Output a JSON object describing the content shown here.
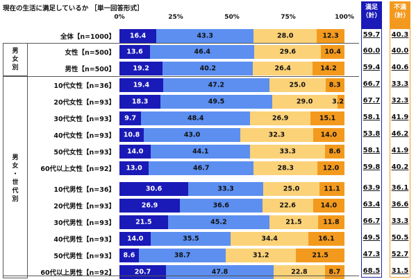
{
  "title": "現在の生活に満足しているか ［単一回答形式］",
  "ticks": [
    "0%",
    "25%",
    "50%",
    "75%",
    "100%"
  ],
  "headers": {
    "manzoku": [
      "満足",
      "（計）"
    ],
    "fuman": [
      "不満",
      "（計）"
    ]
  },
  "groups": {
    "gender": [
      "男",
      "女",
      "別"
    ],
    "gender_age": [
      "男",
      "女",
      "・",
      "世",
      "代",
      "別"
    ]
  },
  "colors": {
    "s1": "#1a1ab8",
    "s2": "#5c8ff0",
    "s3": "#fcd278",
    "s4": "#f39a1e"
  },
  "chart_data": {
    "type": "bar",
    "orientation": "horizontal-stacked-100",
    "title": "現在の生活に満足しているか ［単一回答形式］",
    "xlim": [
      0,
      100
    ],
    "categories": [
      "全体【n=1000】",
      "女性【n=500】",
      "男性【n=500】",
      "10代女性【n=36】",
      "20代女性【n=93】",
      "30代女性【n=93】",
      "40代女性【n=93】",
      "50代女性【n=93】",
      "60代以上女性【n=92】",
      "10代男性【n=36】",
      "20代男性【n=93】",
      "30代男性【n=93】",
      "40代男性【n=93】",
      "50代男性【n=93】",
      "60代以上男性【n=92】"
    ],
    "series": [
      {
        "values": [
          16.4,
          13.6,
          19.2,
          19.4,
          18.3,
          9.7,
          10.8,
          14.0,
          13.0,
          30.6,
          26.9,
          21.5,
          14.0,
          8.6,
          20.7
        ]
      },
      {
        "values": [
          43.3,
          46.4,
          40.2,
          47.2,
          49.5,
          48.4,
          43.0,
          44.1,
          46.7,
          33.3,
          36.6,
          45.2,
          35.5,
          38.7,
          47.8
        ]
      },
      {
        "values": [
          28.0,
          29.6,
          26.4,
          25.0,
          29.0,
          26.9,
          32.3,
          33.3,
          28.3,
          25.0,
          22.6,
          21.5,
          34.4,
          31.2,
          22.8
        ]
      },
      {
        "values": [
          12.3,
          10.4,
          14.2,
          8.3,
          3.2,
          15.1,
          14.0,
          8.6,
          12.0,
          11.1,
          14.0,
          11.8,
          16.1,
          21.5,
          8.7
        ]
      }
    ],
    "summary": {
      "manzoku": [
        "59.7",
        "60.0",
        "59.4",
        "66.7",
        "67.7",
        "58.1",
        "53.8",
        "58.1",
        "59.8",
        "63.9",
        "63.4",
        "66.7",
        "49.5",
        "47.3",
        "68.5"
      ],
      "fuman": [
        "40.3",
        "40.0",
        "40.6",
        "33.3",
        "32.3",
        "41.9",
        "46.2",
        "41.9",
        "40.2",
        "36.1",
        "36.6",
        "33.3",
        "50.5",
        "52.7",
        "31.5"
      ]
    }
  }
}
